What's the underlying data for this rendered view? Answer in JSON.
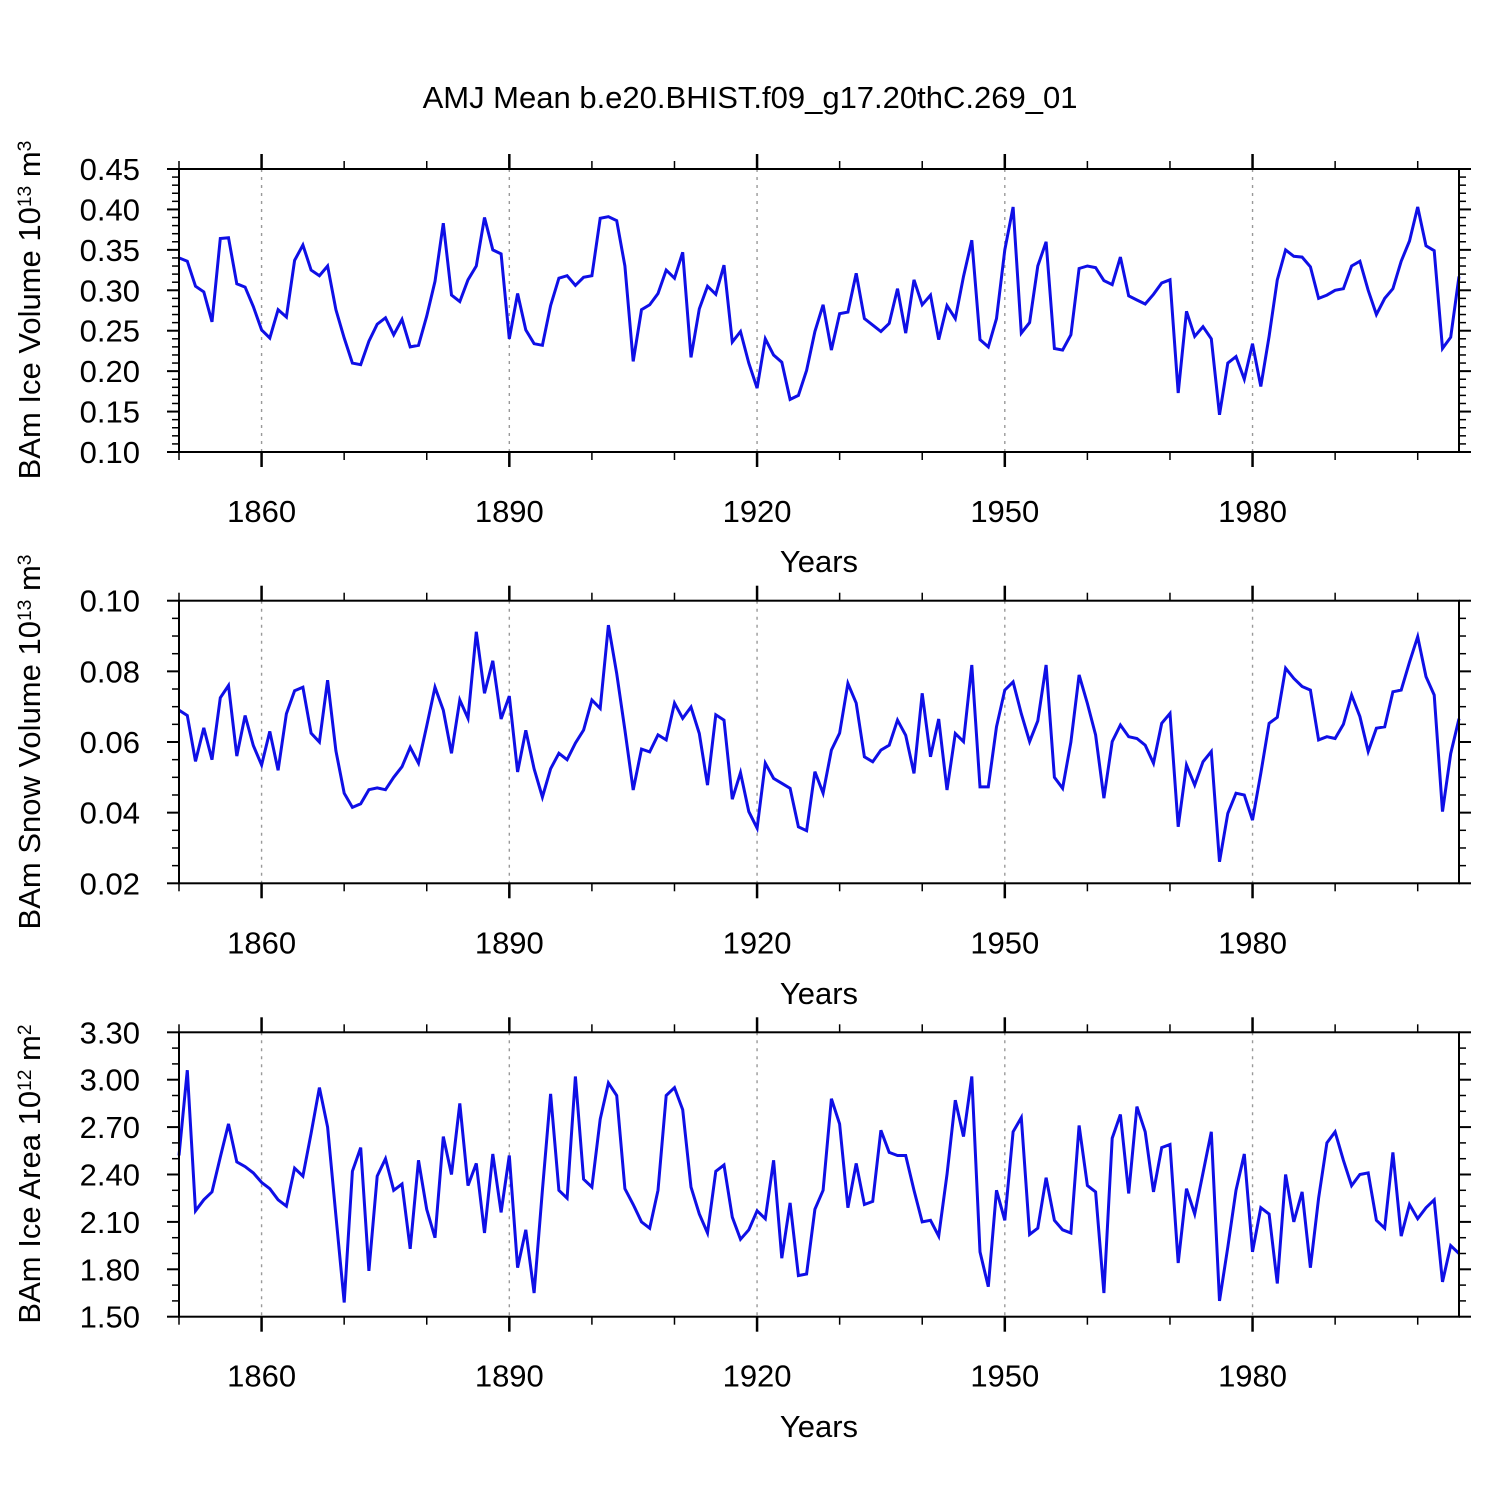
{
  "title": "AMJ Mean b.e20.BHIST.f09_g17.20thC.269_01",
  "colors": {
    "line": "#0f0fe6",
    "grid": "#999999",
    "frame": "#000000"
  },
  "x_axis": {
    "label": "Years",
    "x_start": 1850,
    "x_end": 2005,
    "labeled_tick_years": [
      1860,
      1890,
      1920,
      1950,
      1980
    ],
    "labeled_tick_labels": [
      "1860",
      "1890",
      "1920",
      "1950",
      "1980"
    ],
    "minor_tick_step_years": 10,
    "grid_years": [
      1860,
      1890,
      1920,
      1950,
      1980
    ],
    "grid_style": "dashed"
  },
  "chart_data": [
    {
      "id": "ice-volume",
      "type": "line",
      "title": "AMJ Mean b.e20.BHIST.f09_g17.20thC.269_01",
      "xlabel": "Years",
      "ylabel": "BAm Ice Volume 10^13 m^3",
      "ylabel_parts": [
        [
          "BAm Ice Volume 10",
          false
        ],
        [
          "13",
          true
        ],
        [
          " m",
          false
        ],
        [
          "3",
          true
        ]
      ],
      "ylim": [
        0.1,
        0.45
      ],
      "yticks": [
        0.45,
        0.4,
        0.35,
        0.3,
        0.25,
        0.2,
        0.15,
        0.1
      ],
      "ytick_labels": [
        "0.45",
        "0.40",
        "0.35",
        "0.30",
        "0.25",
        "0.20",
        "0.15",
        "0.10"
      ],
      "y_minor_step": 0.01,
      "legend": "none",
      "grid": "vertical-dashed",
      "x_start": 1850,
      "x_step": 1,
      "values": [
        0.34,
        0.336,
        0.305,
        0.298,
        0.261,
        0.364,
        0.365,
        0.308,
        0.304,
        0.28,
        0.251,
        0.241,
        0.276,
        0.267,
        0.337,
        0.356,
        0.325,
        0.318,
        0.33,
        0.276,
        0.241,
        0.21,
        0.208,
        0.237,
        0.258,
        0.266,
        0.245,
        0.264,
        0.23,
        0.232,
        0.268,
        0.311,
        0.383,
        0.294,
        0.286,
        0.313,
        0.33,
        0.39,
        0.35,
        0.345,
        0.24,
        0.296,
        0.251,
        0.234,
        0.232,
        0.281,
        0.315,
        0.318,
        0.306,
        0.316,
        0.318,
        0.389,
        0.391,
        0.386,
        0.33,
        0.212,
        0.276,
        0.282,
        0.296,
        0.325,
        0.315,
        0.347,
        0.217,
        0.277,
        0.305,
        0.295,
        0.331,
        0.236,
        0.249,
        0.21,
        0.179,
        0.24,
        0.22,
        0.211,
        0.165,
        0.17,
        0.201,
        0.249,
        0.282,
        0.226,
        0.271,
        0.273,
        0.321,
        0.265,
        0.257,
        0.249,
        0.259,
        0.302,
        0.247,
        0.313,
        0.282,
        0.294,
        0.239,
        0.281,
        0.265,
        0.317,
        0.362,
        0.239,
        0.23,
        0.265,
        0.35,
        0.403,
        0.247,
        0.26,
        0.33,
        0.36,
        0.228,
        0.226,
        0.245,
        0.327,
        0.33,
        0.328,
        0.312,
        0.307,
        0.341,
        0.293,
        0.288,
        0.283,
        0.295,
        0.309,
        0.313,
        0.173,
        0.274,
        0.243,
        0.255,
        0.24,
        0.146,
        0.21,
        0.218,
        0.19,
        0.234,
        0.181,
        0.243,
        0.313,
        0.35,
        0.342,
        0.341,
        0.329,
        0.29,
        0.294,
        0.3,
        0.302,
        0.33,
        0.336,
        0.3,
        0.27,
        0.29,
        0.302,
        0.336,
        0.361,
        0.403,
        0.355,
        0.349,
        0.228,
        0.242,
        0.317
      ]
    },
    {
      "id": "snow-volume",
      "type": "line",
      "xlabel": "Years",
      "ylabel": "BAm Snow Volume 10^13 m^3",
      "ylabel_parts": [
        [
          "BAm Snow Volume 10",
          false
        ],
        [
          "13",
          true
        ],
        [
          " m",
          false
        ],
        [
          "3",
          true
        ]
      ],
      "ylim": [
        0.02,
        0.1
      ],
      "yticks": [
        0.1,
        0.08,
        0.06,
        0.04,
        0.02
      ],
      "ytick_labels": [
        "0.10",
        "0.08",
        "0.06",
        "0.04",
        "0.02"
      ],
      "y_minor_step": 0.005,
      "legend": "none",
      "grid": "vertical-dashed",
      "x_start": 1850,
      "x_step": 1,
      "values": [
        0.069,
        0.0675,
        0.0545,
        0.064,
        0.055,
        0.0725,
        0.076,
        0.056,
        0.0675,
        0.059,
        0.0535,
        0.063,
        0.052,
        0.068,
        0.0745,
        0.0755,
        0.0625,
        0.06,
        0.0775,
        0.0575,
        0.0455,
        0.0415,
        0.0425,
        0.0465,
        0.047,
        0.0465,
        0.05,
        0.053,
        0.0585,
        0.054,
        0.0645,
        0.0755,
        0.069,
        0.0568,
        0.0719,
        0.0667,
        0.0912,
        0.0738,
        0.083,
        0.0665,
        0.073,
        0.0515,
        0.0633,
        0.0524,
        0.0444,
        0.0524,
        0.0568,
        0.055,
        0.0597,
        0.0634,
        0.0719,
        0.0695,
        0.0931,
        0.0794,
        0.0634,
        0.0464,
        0.058,
        0.0572,
        0.062,
        0.0606,
        0.071,
        0.0667,
        0.0699,
        0.0624,
        0.0478,
        0.0677,
        0.0662,
        0.0438,
        0.0513,
        0.0403,
        0.0356,
        0.054,
        0.0497,
        0.0483,
        0.0469,
        0.036,
        0.0349,
        0.0516,
        0.0455,
        0.0577,
        0.0625,
        0.0766,
        0.071,
        0.0558,
        0.0544,
        0.0577,
        0.0591,
        0.0662,
        0.0619,
        0.0511,
        0.0738,
        0.0558,
        0.0665,
        0.0464,
        0.0624,
        0.0601,
        0.0818,
        0.0473,
        0.0473,
        0.0643,
        0.0747,
        0.077,
        0.068,
        0.0601,
        0.066,
        0.0818,
        0.05,
        0.0469,
        0.06,
        0.079,
        0.0709,
        0.062,
        0.0441,
        0.0601,
        0.0648,
        0.0615,
        0.061,
        0.0591,
        0.054,
        0.0653,
        0.0681,
        0.036,
        0.0535,
        0.0478,
        0.0544,
        0.0573,
        0.0261,
        0.0398,
        0.0455,
        0.045,
        0.0379,
        0.0511,
        0.0653,
        0.067,
        0.0809,
        0.078,
        0.0757,
        0.0747,
        0.0606,
        0.0615,
        0.061,
        0.065,
        0.0733,
        0.0672,
        0.0573,
        0.0639,
        0.0643,
        0.0742,
        0.0747,
        0.0826,
        0.0898,
        0.0785,
        0.0733,
        0.0403,
        0.0567,
        0.0666
      ]
    },
    {
      "id": "ice-area",
      "type": "line",
      "xlabel": "Years",
      "ylabel": "BAm Ice Area 10^12 m^2",
      "ylabel_parts": [
        [
          "BAm Ice Area 10",
          false
        ],
        [
          "12",
          true
        ],
        [
          " m",
          false
        ],
        [
          "2",
          true
        ]
      ],
      "ylim": [
        1.5,
        3.3
      ],
      "yticks": [
        3.3,
        3.0,
        2.7,
        2.4,
        2.1,
        1.8,
        1.5
      ],
      "ytick_labels": [
        "3.30",
        "3.00",
        "2.70",
        "2.40",
        "2.10",
        "1.80",
        "1.50"
      ],
      "y_minor_step": 0.1,
      "legend": "none",
      "grid": "vertical-dashed",
      "x_start": 1850,
      "x_step": 1,
      "values": [
        2.52,
        3.06,
        2.17,
        2.24,
        2.29,
        2.51,
        2.72,
        2.48,
        2.45,
        2.41,
        2.35,
        2.31,
        2.24,
        2.2,
        2.44,
        2.39,
        2.66,
        2.95,
        2.7,
        2.14,
        1.59,
        2.42,
        2.57,
        1.79,
        2.39,
        2.5,
        2.3,
        2.34,
        1.93,
        2.49,
        2.18,
        2.0,
        2.64,
        2.4,
        2.85,
        2.33,
        2.47,
        2.03,
        2.53,
        2.16,
        2.52,
        1.81,
        2.05,
        1.65,
        2.3,
        2.91,
        2.3,
        2.25,
        3.02,
        2.37,
        2.32,
        2.75,
        2.98,
        2.9,
        2.31,
        2.21,
        2.1,
        2.06,
        2.3,
        2.9,
        2.95,
        2.81,
        2.32,
        2.15,
        2.03,
        2.42,
        2.46,
        2.13,
        1.99,
        2.05,
        2.17,
        2.12,
        2.49,
        1.87,
        2.22,
        1.76,
        1.77,
        2.18,
        2.3,
        2.88,
        2.72,
        2.19,
        2.47,
        2.21,
        2.23,
        2.68,
        2.54,
        2.52,
        2.52,
        2.3,
        2.1,
        2.11,
        2.01,
        2.4,
        2.87,
        2.64,
        3.02,
        1.91,
        1.69,
        2.3,
        2.11,
        2.67,
        2.76,
        2.02,
        2.06,
        2.38,
        2.11,
        2.05,
        2.03,
        2.71,
        2.33,
        2.29,
        1.65,
        2.63,
        2.78,
        2.28,
        2.83,
        2.67,
        2.29,
        2.57,
        2.59,
        1.84,
        2.31,
        2.15,
        2.41,
        2.67,
        1.6,
        1.94,
        2.3,
        2.53,
        1.91,
        2.19,
        2.15,
        1.71,
        2.4,
        2.1,
        2.29,
        1.81,
        2.25,
        2.6,
        2.67,
        2.49,
        2.33,
        2.4,
        2.41,
        2.11,
        2.06,
        2.54,
        2.01,
        2.21,
        2.12,
        2.19,
        2.24,
        1.72,
        1.95,
        1.9
      ]
    }
  ]
}
